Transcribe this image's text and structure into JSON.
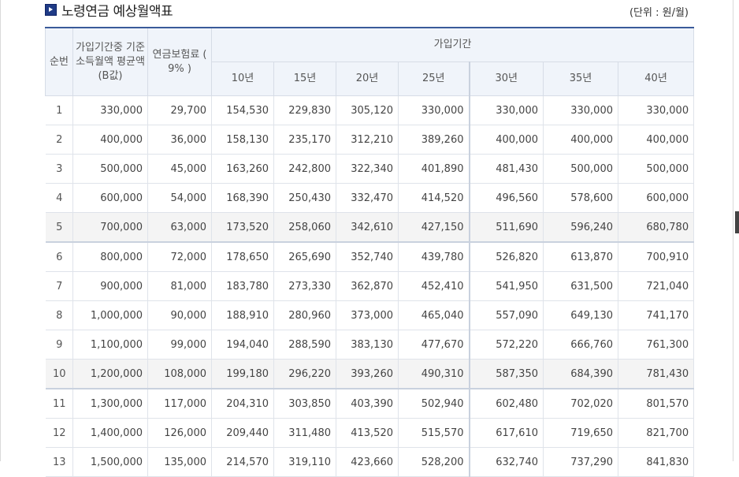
{
  "title": "노령연금 예상월액표",
  "unit": "(단위 : 원/월)",
  "headers": {
    "no": "순번",
    "income": "가입기간중 기준 소득월액 평균액(B값)",
    "premium": "연금보험료 ( 9% )",
    "period": "가입기간",
    "years": [
      "10년",
      "15년",
      "20년",
      "25년",
      "30년",
      "35년",
      "40년"
    ]
  },
  "rows": [
    {
      "no": "1",
      "income": "330,000",
      "premium": "29,700",
      "values": [
        "154,530",
        "229,830",
        "305,120",
        "330,000",
        "330,000",
        "330,000",
        "330,000"
      ]
    },
    {
      "no": "2",
      "income": "400,000",
      "premium": "36,000",
      "values": [
        "158,130",
        "235,170",
        "312,210",
        "389,260",
        "400,000",
        "400,000",
        "400,000"
      ]
    },
    {
      "no": "3",
      "income": "500,000",
      "premium": "45,000",
      "values": [
        "163,260",
        "242,800",
        "322,340",
        "401,890",
        "481,430",
        "500,000",
        "500,000"
      ]
    },
    {
      "no": "4",
      "income": "600,000",
      "premium": "54,000",
      "values": [
        "168,390",
        "250,430",
        "332,470",
        "414,520",
        "496,560",
        "578,600",
        "600,000"
      ]
    },
    {
      "no": "5",
      "income": "700,000",
      "premium": "63,000",
      "values": [
        "173,520",
        "258,060",
        "342,610",
        "427,150",
        "511,690",
        "596,240",
        "680,780"
      ]
    },
    {
      "no": "6",
      "income": "800,000",
      "premium": "72,000",
      "values": [
        "178,650",
        "265,690",
        "352,740",
        "439,780",
        "526,820",
        "613,870",
        "700,910"
      ]
    },
    {
      "no": "7",
      "income": "900,000",
      "premium": "81,000",
      "values": [
        "183,780",
        "273,330",
        "362,870",
        "452,410",
        "541,950",
        "631,500",
        "721,040"
      ]
    },
    {
      "no": "8",
      "income": "1,000,000",
      "premium": "90,000",
      "values": [
        "188,910",
        "280,960",
        "373,000",
        "465,040",
        "557,090",
        "649,130",
        "741,170"
      ]
    },
    {
      "no": "9",
      "income": "1,100,000",
      "premium": "99,000",
      "values": [
        "194,040",
        "288,590",
        "383,130",
        "477,670",
        "572,220",
        "666,760",
        "761,300"
      ]
    },
    {
      "no": "10",
      "income": "1,200,000",
      "premium": "108,000",
      "values": [
        "199,180",
        "296,220",
        "393,260",
        "490,310",
        "587,350",
        "684,390",
        "781,430"
      ]
    },
    {
      "no": "11",
      "income": "1,300,000",
      "premium": "117,000",
      "values": [
        "204,310",
        "303,850",
        "403,390",
        "502,940",
        "602,480",
        "702,020",
        "801,570"
      ]
    },
    {
      "no": "12",
      "income": "1,400,000",
      "premium": "126,000",
      "values": [
        "209,440",
        "311,480",
        "413,520",
        "515,570",
        "617,610",
        "719,650",
        "821,700"
      ]
    },
    {
      "no": "13",
      "income": "1,500,000",
      "premium": "135,000",
      "values": [
        "214,570",
        "319,110",
        "423,660",
        "528,200",
        "632,740",
        "737,290",
        "841,830"
      ]
    }
  ],
  "colors": {
    "header_bg": "#f0f4fa",
    "header_rule": "#3a5a9a",
    "alt_row": "#f4f4f4",
    "title_icon": "#1f3b86"
  }
}
